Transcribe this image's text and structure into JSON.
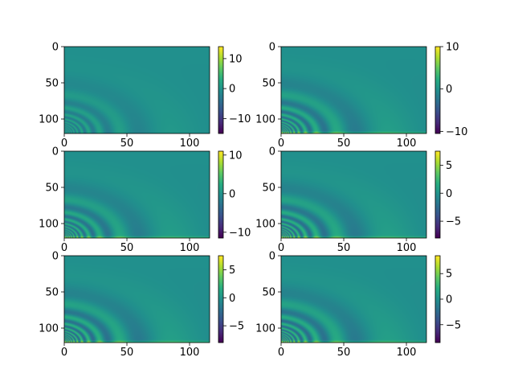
{
  "colormap": "viridis",
  "figure": {
    "background": "#ffffff"
  },
  "chart_data": [
    {
      "type": "heatmap",
      "panel": "row1-left",
      "xlim": [
        0,
        116
      ],
      "ylim": [
        120,
        0
      ],
      "xticks": [
        "0",
        "50",
        "100"
      ],
      "yticks": [
        "0",
        "50",
        "100"
      ],
      "colorbar": {
        "range": [
          -15,
          14
        ],
        "ticks": [
          "10",
          "0",
          "−10"
        ],
        "tick_values": [
          10,
          0,
          -10
        ]
      },
      "pattern": {
        "amplitude_scale": 0.45,
        "bottom_band": false
      }
    },
    {
      "type": "heatmap",
      "panel": "row1-right",
      "xlim": [
        0,
        116
      ],
      "ylim": [
        120,
        0
      ],
      "xticks": [
        "0",
        "50",
        "100"
      ],
      "yticks": [
        "0",
        "50",
        "100"
      ],
      "colorbar": {
        "range": [
          -10.5,
          10
        ],
        "ticks": [
          "10",
          "0",
          "−10"
        ],
        "tick_values": [
          10,
          0,
          -10
        ]
      },
      "pattern": {
        "amplitude_scale": 0.75,
        "bottom_band": true
      }
    },
    {
      "type": "heatmap",
      "panel": "row2-left",
      "xlim": [
        0,
        116
      ],
      "ylim": [
        120,
        0
      ],
      "xticks": [
        "0",
        "50",
        "100"
      ],
      "yticks": [
        "0",
        "50",
        "100"
      ],
      "colorbar": {
        "range": [
          -11.5,
          11
        ],
        "ticks": [
          "10",
          "0",
          "−10"
        ],
        "tick_values": [
          10,
          0,
          -10
        ]
      },
      "pattern": {
        "amplitude_scale": 0.7,
        "bottom_band": true
      }
    },
    {
      "type": "heatmap",
      "panel": "row2-right",
      "xlim": [
        0,
        116
      ],
      "ylim": [
        120,
        0
      ],
      "xticks": [
        "0",
        "50",
        "100"
      ],
      "yticks": [
        "0",
        "50",
        "100"
      ],
      "colorbar": {
        "range": [
          -8,
          7.5
        ],
        "ticks": [
          "5",
          "0",
          "−5"
        ],
        "tick_values": [
          5,
          0,
          -5
        ]
      },
      "pattern": {
        "amplitude_scale": 0.8,
        "bottom_band": true
      }
    },
    {
      "type": "heatmap",
      "panel": "row3-left",
      "xlim": [
        0,
        116
      ],
      "ylim": [
        120,
        0
      ],
      "xticks": [
        "0",
        "50",
        "100"
      ],
      "yticks": [
        "0",
        "50",
        "100"
      ],
      "colorbar": {
        "range": [
          -8,
          7.5
        ],
        "ticks": [
          "5",
          "0",
          "−5"
        ],
        "tick_values": [
          5,
          0,
          -5
        ]
      },
      "pattern": {
        "amplitude_scale": 0.8,
        "bottom_band": true
      }
    },
    {
      "type": "heatmap",
      "panel": "row3-right",
      "xlim": [
        0,
        116
      ],
      "ylim": [
        120,
        0
      ],
      "xticks": [
        "0",
        "50",
        "100"
      ],
      "yticks": [
        "0",
        "50",
        "100"
      ],
      "colorbar": {
        "range": [
          -8.5,
          8.5
        ],
        "ticks": [
          "5",
          "0",
          "−5"
        ],
        "tick_values": [
          5,
          0,
          -5
        ]
      },
      "pattern": {
        "amplitude_scale": 0.8,
        "bottom_band": true
      }
    }
  ]
}
